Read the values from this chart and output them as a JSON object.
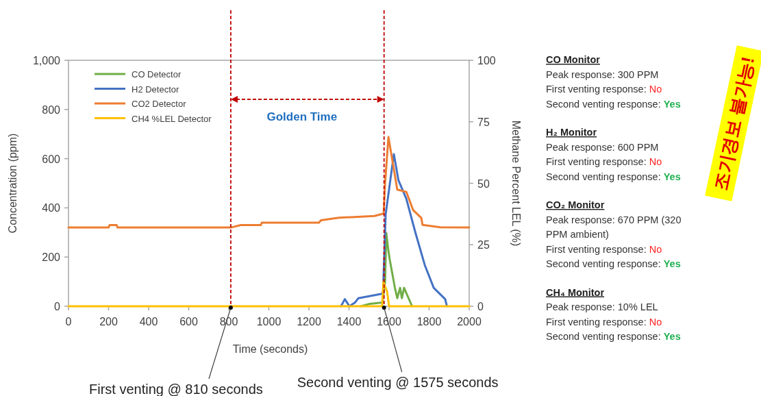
{
  "chart_data": [
    {
      "type": "line",
      "xlabel": "Time (seconds)",
      "ylabel": "Concentration (ppm)",
      "y2label": "Methane Percent LEL (%)",
      "xlim": [
        0,
        2000
      ],
      "xticks": [
        0,
        200,
        400,
        600,
        800,
        1000,
        1200,
        1400,
        1600,
        1800,
        2000
      ],
      "ylim": [
        0,
        1000
      ],
      "yticks": [
        0,
        200,
        400,
        600,
        800,
        {
          "value": 1000,
          "label": "1,000"
        }
      ],
      "y2lim": [
        0,
        100
      ],
      "y2ticks": [
        0,
        25,
        50,
        75,
        100
      ],
      "legend": "top left",
      "grid": false,
      "series": [
        {
          "name": "CO Detector",
          "color": "#70ad47",
          "x": [
            1460,
            1504,
            1567,
            1580,
            1586,
            1597,
            1604,
            1629,
            1641,
            1655,
            1664,
            1675,
            1715
          ],
          "values": [
            0,
            10,
            15,
            100,
            298,
            224,
            187,
            75,
            33,
            75,
            33,
            75,
            0
          ]
        },
        {
          "name": "H2 Detector",
          "color": "#4472c4",
          "x": [
            1360,
            1379,
            1402,
            1430,
            1447,
            1561,
            1570,
            1583,
            1624,
            1647,
            1686,
            1732,
            1778,
            1823,
            1880,
            1889
          ],
          "values": [
            0,
            29,
            0,
            15,
            33,
            50,
            55,
            373,
            618,
            512,
            437,
            298,
            168,
            75,
            29,
            0
          ]
        },
        {
          "name": "CO2 Detector",
          "color": "#ed7d31",
          "x": [
            0,
            200,
            205,
            240,
            245,
            810,
            860,
            870,
            960,
            965,
            1250,
            1260,
            1350,
            1527,
            1573,
            1580,
            1597,
            1641,
            1686,
            1720,
            1761,
            1767,
            1856,
            2000
          ],
          "values": [
            320,
            320,
            330,
            330,
            320,
            320,
            330,
            330,
            330,
            340,
            340,
            350,
            360,
            367,
            377,
            500,
            688,
            474,
            465,
            391,
            359,
            331,
            321,
            320
          ]
        },
        {
          "name": "CH4 %LEL Detector",
          "color": "#ffc000",
          "axis": "y2",
          "x": [
            0,
            1565,
            1572,
            1580,
            1590,
            1600,
            2000
          ],
          "values": [
            0,
            0,
            10,
            8,
            6,
            0,
            0
          ]
        }
      ],
      "ref_lines": [
        {
          "axis": "x",
          "value": 810,
          "label": "First venting @ 810 seconds",
          "color": "#c00000",
          "line_style": "dashed"
        },
        {
          "axis": "x",
          "value": 1575,
          "label": "Second venting @ 1575 seconds",
          "color": "#c00000",
          "line_style": "dashed"
        }
      ],
      "annotations": [
        "Golden Time"
      ]
    },
    {
      "type": "other",
      "annotations": [
        "CO Monitor",
        "Peak response: 300 PPM",
        "First venting response: No",
        "Second venting response: Yes",
        "H₂ Monitor",
        "Peak response: 600 PPM",
        "First venting response: No",
        "Second venting response: Yes",
        "CO₂ Monitor",
        "Peak response: 670 PPM (320",
        "PPM ambient)",
        "First venting response: No",
        "Second venting response: Yes",
        "CH₄ Monitor",
        "Peak response: 10% LEL",
        "First venting response: No",
        "Second venting response: Yes",
        "조기경보 불가능!"
      ]
    }
  ]
}
